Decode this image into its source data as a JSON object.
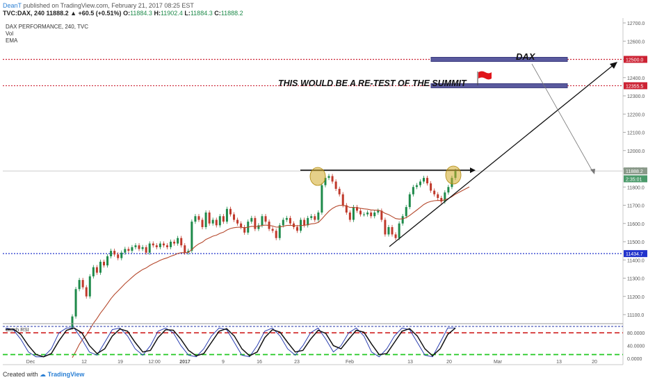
{
  "header": {
    "author": "DeanT",
    "published_text": "published on TradingView.com, February 21, 2017 08:25 EST",
    "symbol": "TVC:DAX, 240",
    "change": "11888.2 ▲ +60.5 (+0.51%)",
    "ohlc": {
      "o_label": "O:",
      "o": "11884.3",
      "h_label": "H:",
      "h": "11902.4",
      "l_label": "L:",
      "l": "11884.3",
      "c_label": "C:",
      "c": "11888.2"
    }
  },
  "legend": {
    "title": "DAX PERFORMANCE, 240, TVC",
    "vol": "Vol",
    "ema": "EMA"
  },
  "annotations": {
    "main_text": "THIS WOULD BE A RE-TEST OF THE SUMMIT",
    "dax_label": "DAX",
    "flag_icon": "red-flag-icon",
    "highlight_icon": "yellow-circle-icon"
  },
  "footer": {
    "created_with": "Created with",
    "brand": "TradingView"
  },
  "indicator_label": "Stoch RSI",
  "colors": {
    "up": "#1e8a4a",
    "down": "#c0392b",
    "ema": "#b5482c",
    "support": "#2233cc",
    "resistance": "#cc2233",
    "zone": "#5a5a9e",
    "stoch_k": "#2a3eb1",
    "stoch_d": "#111111",
    "axis_text": "#555555"
  },
  "chart_data": [
    {
      "type": "candlestick",
      "title": "DAX PERFORMANCE, 240, TVC",
      "ylim": [
        11050,
        12750
      ],
      "y_ticks": [
        "12700.0",
        "12600.0",
        "12500.0",
        "12400.0",
        "12300.0",
        "12200.0",
        "12100.0",
        "12000.0",
        "11900.0",
        "11800.0",
        "11700.0",
        "11600.0",
        "11500.0",
        "11400.0",
        "11300.0",
        "11200.0",
        "11100.0"
      ],
      "x_ticks": [
        "Dec",
        "12",
        "19",
        "12:00",
        "2017",
        "9",
        "16",
        "23",
        "Feb",
        "13",
        "20",
        "Mar",
        "13",
        "20"
      ],
      "price_labels": [
        {
          "text": "12500.0",
          "value": 12500,
          "color": "#cc2233"
        },
        {
          "text": "12355.5",
          "value": 12355.5,
          "color": "#cc2233"
        },
        {
          "text": "11888.2",
          "value": 11888.2,
          "color": "#8a9a8a"
        },
        {
          "text": "2:35:01",
          "value": 11845,
          "color": "#4a9a6a"
        },
        {
          "text": "11434.7",
          "value": 11434.7,
          "color": "#2233cc"
        }
      ],
      "levels": {
        "resistance_1": 12500,
        "resistance_2": 12355.5,
        "support": 11434.7,
        "current": 11888.2
      },
      "close_series": [
        11090,
        11240,
        11290,
        11250,
        11200,
        11310,
        11360,
        11330,
        11390,
        11370,
        11420,
        11450,
        11430,
        11410,
        11440,
        11460,
        11450,
        11470,
        11480,
        11460,
        11470,
        11440,
        11490,
        11480,
        11470,
        11490,
        11480,
        11470,
        11500,
        11490,
        11520,
        11480,
        11440,
        11450,
        11610,
        11640,
        11620,
        11580,
        11660,
        11600,
        11620,
        11590,
        11640,
        11610,
        11680,
        11650,
        11620,
        11600,
        11580,
        11550,
        11610,
        11630,
        11570,
        11590,
        11640,
        11610,
        11570,
        11560,
        11520,
        11590,
        11620,
        11630,
        11600,
        11580,
        11560,
        11620,
        11590,
        11630,
        11640,
        11620,
        11660,
        11810,
        11850,
        11860,
        11830,
        11790,
        11760,
        11700,
        11660,
        11620,
        11690,
        11670,
        11650,
        11650,
        11660,
        11640,
        11660,
        11670,
        11620,
        11540,
        11580,
        11540,
        11520,
        11600,
        11640,
        11690,
        11760,
        11800,
        11810,
        11830,
        11850,
        11820,
        11780,
        11760,
        11740,
        11720,
        11770,
        11800,
        11850,
        11888
      ]
    },
    {
      "type": "line",
      "title": "Stoch RSI",
      "ylim": [
        0,
        100
      ],
      "y_ticks": [
        "80.0000",
        "40.0000",
        "0.0000"
      ],
      "levels": [
        80,
        20
      ],
      "series": [
        {
          "name": "K",
          "values": [
            95,
            90,
            60,
            20,
            5,
            5,
            30,
            80,
            95,
            95,
            60,
            20,
            10,
            50,
            90,
            95,
            70,
            30,
            10,
            40,
            85,
            95,
            80,
            40,
            10,
            5,
            30,
            70,
            95,
            90,
            50,
            10,
            5,
            40,
            85,
            95,
            70,
            30,
            10,
            40,
            80,
            95,
            60,
            20,
            40,
            80,
            95,
            70,
            20,
            5,
            30,
            70,
            95,
            90,
            50,
            10,
            5,
            50,
            95,
            95
          ]
        },
        {
          "name": "D",
          "values": [
            90,
            92,
            75,
            40,
            12,
            5,
            15,
            55,
            88,
            95,
            80,
            40,
            15,
            30,
            70,
            92,
            85,
            50,
            20,
            25,
            65,
            90,
            88,
            60,
            25,
            8,
            15,
            50,
            85,
            93,
            70,
            30,
            8,
            20,
            65,
            90,
            82,
            50,
            20,
            25,
            60,
            88,
            78,
            40,
            30,
            60,
            88,
            82,
            45,
            12,
            15,
            50,
            85,
            93,
            70,
            30,
            8,
            30,
            75,
            95
          ]
        }
      ]
    }
  ]
}
